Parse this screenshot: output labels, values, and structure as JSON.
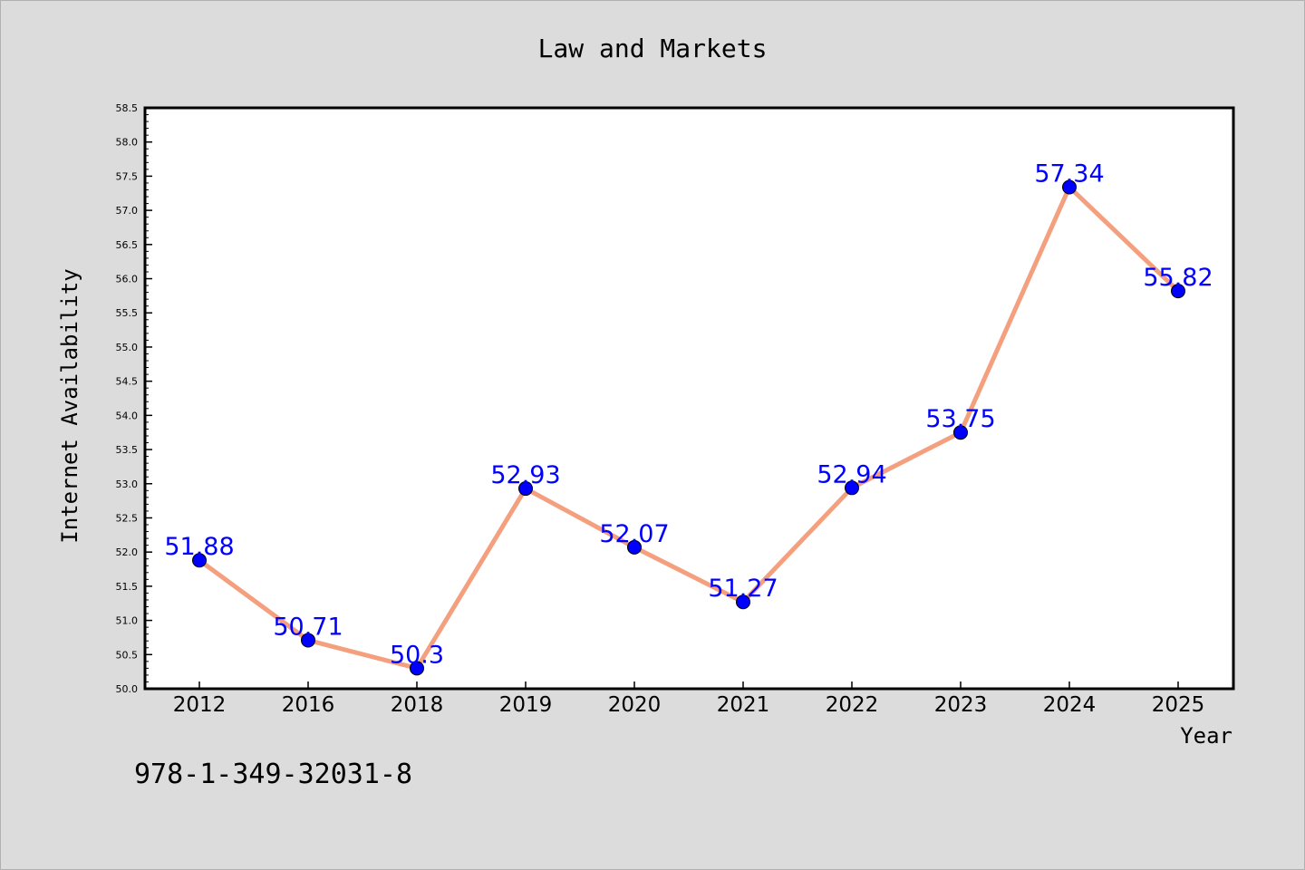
{
  "colors": {
    "background": "#dcdcdc",
    "plot_background": "#ffffff",
    "line": "#f4a07e",
    "marker": "#0000ff",
    "data_label": "#0000ff"
  },
  "footer": {
    "code": "978-1-349-32031-8"
  },
  "chart_data": {
    "type": "line",
    "title": "Law and Markets",
    "xlabel": "Year",
    "ylabel": "Internet Availability",
    "categories": [
      "2012",
      "2016",
      "2018",
      "2019",
      "2020",
      "2021",
      "2022",
      "2023",
      "2024",
      "2025"
    ],
    "values": [
      51.88,
      50.71,
      50.3,
      52.93,
      52.07,
      51.27,
      52.94,
      53.75,
      57.34,
      55.82
    ],
    "data_labels": [
      "51.88",
      "50.71",
      "50.3",
      "52.93",
      "52.07",
      "51.27",
      "52.94",
      "53.75",
      "57.34",
      "55.82"
    ],
    "ylim": [
      50.0,
      58.5
    ],
    "yticks": [
      "50.0",
      "50.5",
      "51.0",
      "51.5",
      "52.0",
      "52.5",
      "53.0",
      "53.5",
      "54.0",
      "54.5",
      "55.0",
      "55.5",
      "56.0",
      "56.5",
      "57.0",
      "57.5",
      "58.0",
      "58.5"
    ],
    "grid": false,
    "legend": "none",
    "markers": "circle"
  }
}
